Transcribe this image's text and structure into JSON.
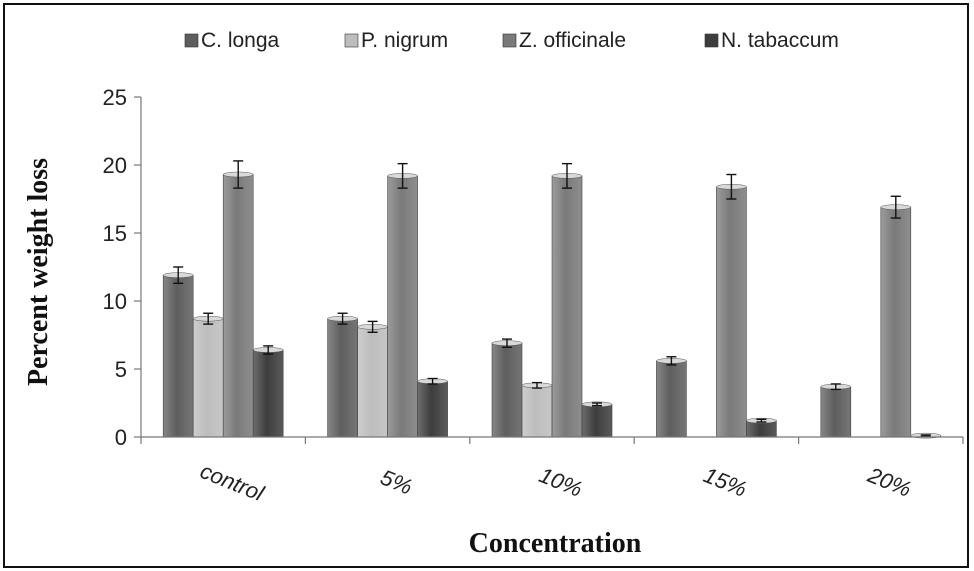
{
  "chart_data": {
    "type": "bar",
    "xlabel": "Concentration",
    "ylabel": "Percent weight loss",
    "ylim": [
      0,
      25
    ],
    "yticks": [
      0,
      5,
      10,
      15,
      20,
      25
    ],
    "categories": [
      "control",
      "5%",
      "10%",
      "15%",
      "20%"
    ],
    "legend_position": "top",
    "grid": false,
    "series": [
      {
        "name": "C. longa",
        "color": "#5e5e5e",
        "values": [
          11.9,
          8.7,
          6.9,
          5.6,
          3.7
        ],
        "errors": [
          0.6,
          0.4,
          0.3,
          0.3,
          0.2
        ]
      },
      {
        "name": "P. nigrum",
        "color": "#bdbdbd",
        "values": [
          8.7,
          8.1,
          3.8,
          0,
          0
        ],
        "errors": [
          0.4,
          0.4,
          0.2,
          0,
          0
        ]
      },
      {
        "name": "Z. officinale",
        "color": "#7a7a7a",
        "values": [
          19.3,
          19.2,
          19.2,
          18.4,
          16.9
        ],
        "errors": [
          1.0,
          0.9,
          0.9,
          0.9,
          0.8
        ]
      },
      {
        "name": "N. tabaccum",
        "color": "#3d3d3d",
        "values": [
          6.4,
          4.1,
          2.4,
          1.2,
          0.1
        ],
        "errors": [
          0.3,
          0.2,
          0.1,
          0.1,
          0.05
        ]
      }
    ]
  }
}
